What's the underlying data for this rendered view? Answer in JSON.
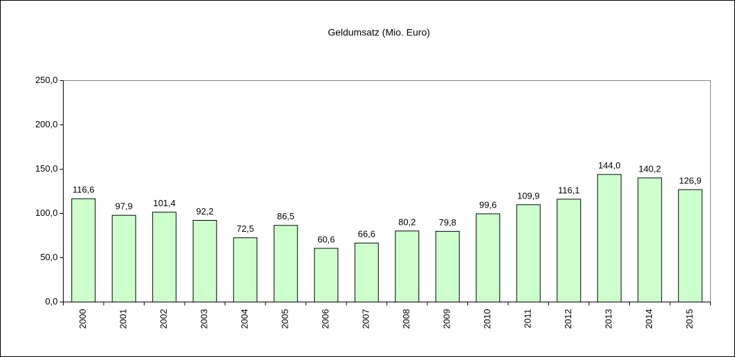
{
  "chart_data": {
    "type": "bar",
    "title": "Geldumsatz  (Mio. Euro)",
    "categories": [
      "2000",
      "2001",
      "2002",
      "2003",
      "2004",
      "2005",
      "2006",
      "2007",
      "2008",
      "2009",
      "2010",
      "2011",
      "2012",
      "2013",
      "2014",
      "2015"
    ],
    "values": [
      116.6,
      97.9,
      101.4,
      92.2,
      72.5,
      86.5,
      60.6,
      66.6,
      80.2,
      79.8,
      99.6,
      109.9,
      116.1,
      144.0,
      140.2,
      126.9
    ],
    "value_labels": [
      "116,6",
      "97,9",
      "101,4",
      "92,2",
      "72,5",
      "86,5",
      "60,6",
      "66,6",
      "80,2",
      "79,8",
      "99,6",
      "109,9",
      "116,1",
      "144,0",
      "140,2",
      "126,9"
    ],
    "color": "#ccffcc",
    "ylim": [
      0,
      250
    ],
    "yticks": [
      {
        "value": 0,
        "label": "0,0"
      },
      {
        "value": 50,
        "label": "50,0"
      },
      {
        "value": 100,
        "label": "100,0"
      },
      {
        "value": 150,
        "label": "150,0"
      },
      {
        "value": 200,
        "label": "200,0"
      },
      {
        "value": 250,
        "label": "250,0"
      }
    ]
  }
}
